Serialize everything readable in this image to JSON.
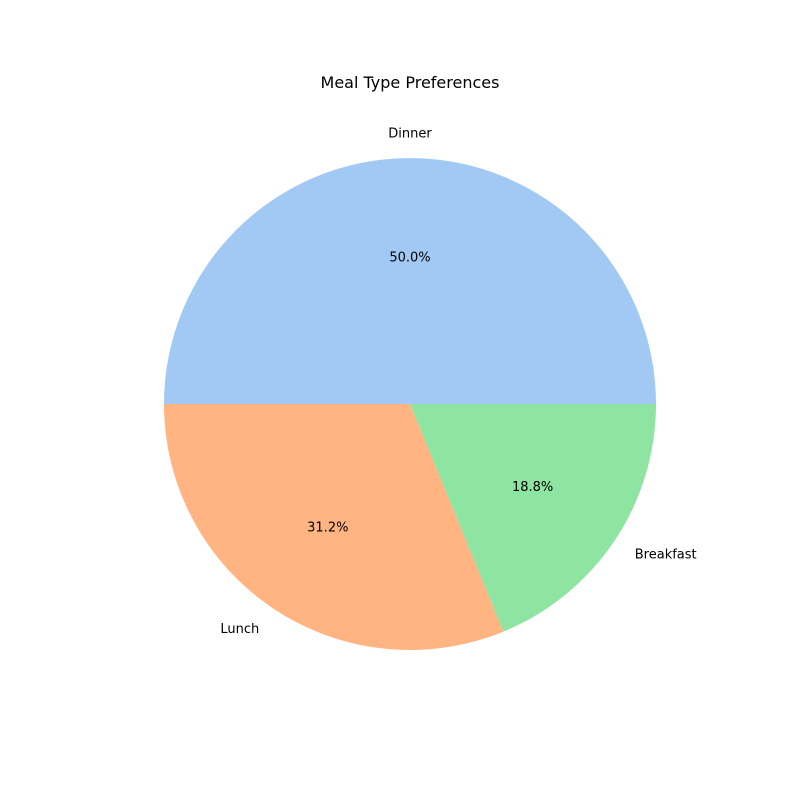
{
  "chart_data": {
    "type": "pie",
    "title": "Meal Type Preferences",
    "categories": [
      "Dinner",
      "Lunch",
      "Breakfast"
    ],
    "values": [
      50.0,
      31.2,
      18.8
    ],
    "percent_labels": [
      "50.0%",
      "31.2%",
      "18.8%"
    ],
    "colors": [
      "#a1c9f4",
      "#ffb482",
      "#8de5a1"
    ],
    "start_angle_deg": 0,
    "direction": "counterclockwise",
    "legend": "none"
  }
}
